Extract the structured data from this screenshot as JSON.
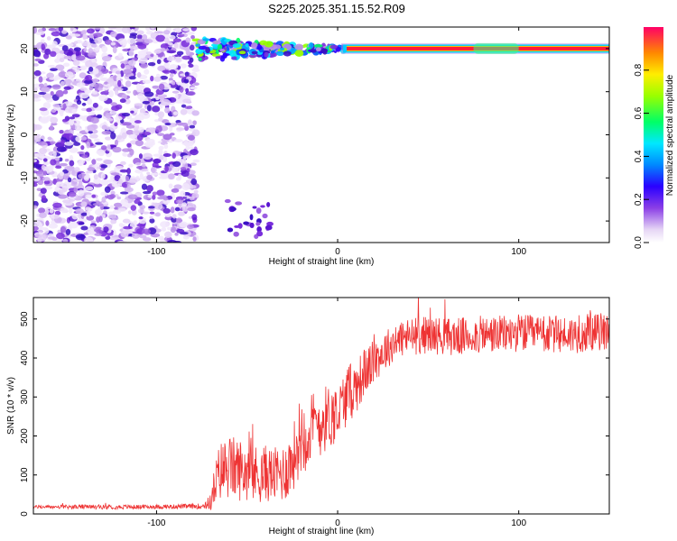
{
  "title": "S225.2025.351.15.52.R09",
  "chart_data": [
    {
      "type": "heatmap",
      "xlabel": "Height of straight line (km)",
      "ylabel": "Frequency (Hz)",
      "xlim": [
        -168,
        150
      ],
      "ylim": [
        -25,
        25
      ],
      "xticks": [
        "-100",
        "0",
        "100"
      ],
      "yticks": [
        "20",
        "10",
        "0",
        "-10",
        "-20"
      ],
      "colorbar": {
        "label": "Normalized spectral amplitude",
        "range": [
          0,
          1
        ],
        "ticks": [
          "0.0",
          "0.2",
          "0.4",
          "0.6",
          "0.8"
        ]
      },
      "features": {
        "noise_region_x": [
          -168,
          -78
        ],
        "tone_frequency_hz": 20,
        "tone_start_x": -78,
        "strong_tone_start_x": 5
      }
    },
    {
      "type": "line",
      "xlabel": "Height of straight line (km)",
      "ylabel": "SNR (10 * v/v)",
      "xlim": [
        -168,
        150
      ],
      "ylim": [
        0,
        555
      ],
      "xticks": [
        "-100",
        "0",
        "100"
      ],
      "yticks": [
        "0",
        "100",
        "200",
        "300",
        "400",
        "500"
      ],
      "color": "#ee3333",
      "x": [
        -168,
        -140,
        -110,
        -90,
        -75,
        -70,
        -68,
        -65,
        -60,
        -55,
        -50,
        -45,
        -40,
        -35,
        -30,
        -25,
        -22,
        -20,
        -15,
        -10,
        -5,
        0,
        5,
        10,
        15,
        20,
        25,
        30,
        35,
        40,
        50,
        60,
        70,
        80,
        90,
        100,
        110,
        120,
        130,
        140,
        150
      ],
      "y": [
        18,
        18,
        18,
        19,
        20,
        30,
        70,
        110,
        120,
        115,
        110,
        100,
        105,
        100,
        105,
        135,
        185,
        205,
        215,
        235,
        250,
        255,
        305,
        325,
        365,
        390,
        415,
        435,
        450,
        455,
        460,
        455,
        455,
        460,
        460,
        465,
        460,
        460,
        460,
        465,
        470
      ],
      "amplitude": [
        3,
        4,
        4,
        4,
        5,
        15,
        40,
        55,
        60,
        58,
        55,
        55,
        52,
        50,
        55,
        60,
        70,
        75,
        70,
        65,
        60,
        55,
        55,
        50,
        45,
        40,
        38,
        35,
        35,
        35,
        35,
        35,
        35,
        35,
        35,
        35,
        35,
        35,
        35,
        35,
        35
      ]
    }
  ]
}
